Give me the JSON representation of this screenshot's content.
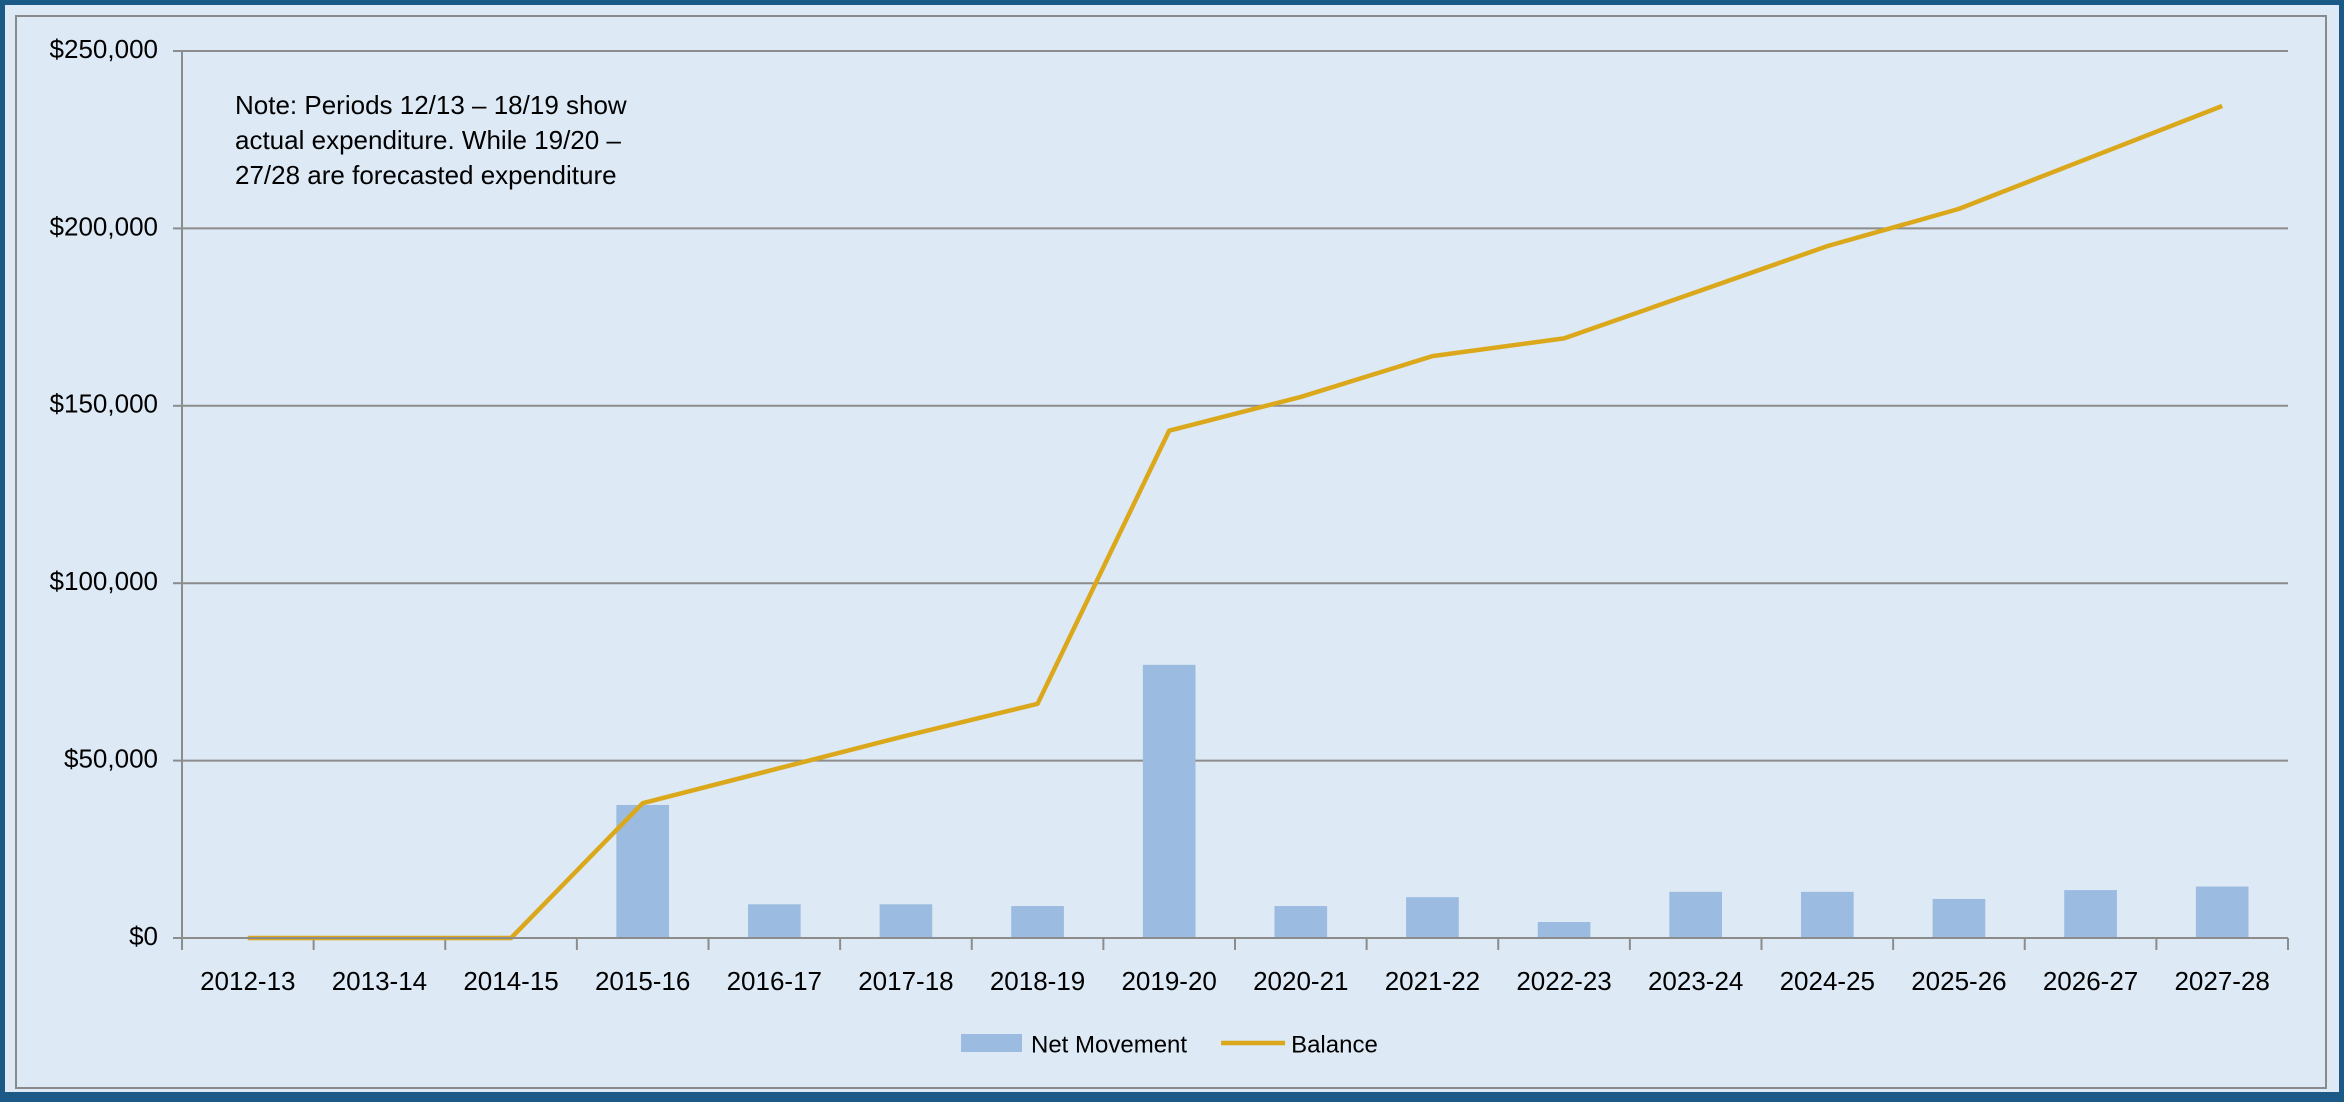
{
  "chart_data": {
    "type": "bar",
    "annotation_lines": [
      "Note: Periods 12/13 – 18/19 show",
      "actual expenditure. While 19/20 –",
      "27/28 are forecasted  expenditure"
    ],
    "categories": [
      "2012-13",
      "2013-14",
      "2014-15",
      "2015-16",
      "2016-17",
      "2017-18",
      "2018-19",
      "2019-20",
      "2020-21",
      "2021-22",
      "2022-23",
      "2023-24",
      "2024-25",
      "2025-26",
      "2026-27",
      "2027-28"
    ],
    "series": [
      {
        "name": "Net Movement",
        "type": "bar",
        "color": "#9bbbe0",
        "values": [
          0,
          0,
          0,
          37500,
          9500,
          9500,
          9000,
          77000,
          9000,
          11500,
          4500,
          13000,
          13000,
          11000,
          13500,
          14500
        ]
      },
      {
        "name": "Balance",
        "type": "line",
        "color": "#dba81c",
        "values": [
          0,
          0,
          0,
          38000,
          47500,
          57000,
          66000,
          143000,
          152500,
          164000,
          169000,
          182000,
          195000,
          205500,
          220000,
          234500
        ]
      }
    ],
    "ylim": [
      0,
      250000
    ],
    "yticks": [
      {
        "value": 0,
        "label": "$0"
      },
      {
        "value": 50000,
        "label": "$50,000"
      },
      {
        "value": 100000,
        "label": "$100,000"
      },
      {
        "value": 150000,
        "label": "$150,000"
      },
      {
        "value": 200000,
        "label": "$200,000"
      },
      {
        "value": 250000,
        "label": "$250,000"
      }
    ],
    "grid": true,
    "legend": "bottom"
  }
}
